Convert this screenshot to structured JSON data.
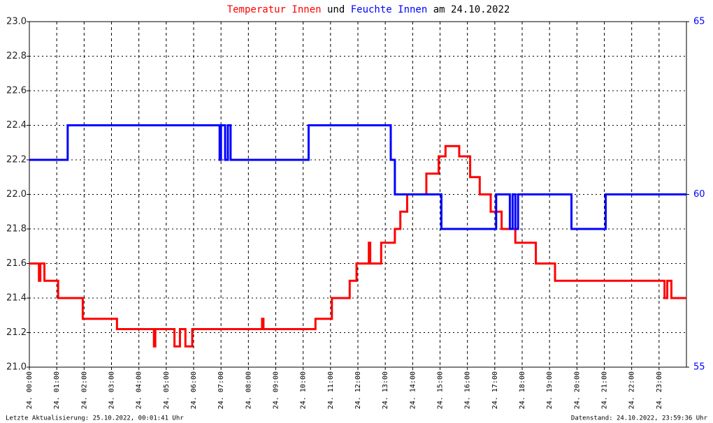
{
  "chart_data": {
    "type": "line",
    "title_connector": "und",
    "title_suffix": "am 24.10.2022",
    "footer_left": "Letzte Aktualisierung: 25.10.2022, 00:01:41 Uhr",
    "footer_right": "Datenstand: 24.10.2022, 23:59:36 Uhr",
    "xlim": [
      0,
      24
    ],
    "xticks": [
      {
        "value": 0,
        "label": "24. 00:00"
      },
      {
        "value": 1,
        "label": "24. 01:00"
      },
      {
        "value": 2,
        "label": "24. 02:00"
      },
      {
        "value": 3,
        "label": "24. 03:00"
      },
      {
        "value": 4,
        "label": "24. 04:00"
      },
      {
        "value": 5,
        "label": "24. 05:00"
      },
      {
        "value": 6,
        "label": "24. 06:00"
      },
      {
        "value": 7,
        "label": "24. 07:00"
      },
      {
        "value": 8,
        "label": "24. 08:00"
      },
      {
        "value": 9,
        "label": "24. 09:00"
      },
      {
        "value": 10,
        "label": "24. 10:00"
      },
      {
        "value": 11,
        "label": "24. 11:00"
      },
      {
        "value": 12,
        "label": "24. 12:00"
      },
      {
        "value": 13,
        "label": "24. 13:00"
      },
      {
        "value": 14,
        "label": "24. 14:00"
      },
      {
        "value": 15,
        "label": "24. 15:00"
      },
      {
        "value": 16,
        "label": "24. 16:00"
      },
      {
        "value": 17,
        "label": "24. 17:00"
      },
      {
        "value": 18,
        "label": "24. 18:00"
      },
      {
        "value": 19,
        "label": "24. 19:00"
      },
      {
        "value": 20,
        "label": "24. 20:00"
      },
      {
        "value": 21,
        "label": "24. 21:00"
      },
      {
        "value": 22,
        "label": "24. 22:00"
      },
      {
        "value": 23,
        "label": "24. 23:00"
      }
    ],
    "ylim": [
      21,
      23
    ],
    "yticks": [
      {
        "value": 21,
        "label": "21.0"
      },
      21.2,
      21.4,
      21.6,
      21.8,
      {
        "value": 22,
        "label": "22.0"
      },
      22.2,
      22.4,
      22.6,
      22.8,
      {
        "value": 23,
        "label": "23.0"
      }
    ],
    "y2lim": [
      55,
      65
    ],
    "y2ticks": [
      55,
      60,
      65
    ],
    "grid": true,
    "series": [
      {
        "name": "Temperatur Innen",
        "color": "#ff0000",
        "x": [
          0,
          0.35,
          0.35,
          0.4,
          0.4,
          0.55,
          0.55,
          1.05,
          1.05,
          1.95,
          1.95,
          3.2,
          3.2,
          4.55,
          4.55,
          4.6,
          4.6,
          5.3,
          5.3,
          5.5,
          5.5,
          5.7,
          5.7,
          5.95,
          5.95,
          8.5,
          8.5,
          8.55,
          8.55,
          10.45,
          10.45,
          11.05,
          11.05,
          11.7,
          11.7,
          11.95,
          11.95,
          12.4,
          12.4,
          12.45,
          12.45,
          12.85,
          12.85,
          13.35,
          13.35,
          13.55,
          13.55,
          13.8,
          13.8,
          14.5,
          14.5,
          14.95,
          14.95,
          15.2,
          15.2,
          15.7,
          15.7,
          16.1,
          16.1,
          16.45,
          16.45,
          16.85,
          16.85,
          17.25,
          17.25,
          17.75,
          17.75,
          18.5,
          18.5,
          19.2,
          19.2,
          23.2,
          23.2,
          23.3,
          23.3,
          23.45,
          23.45,
          24
        ],
        "values": [
          21.6,
          21.6,
          21.5,
          21.5,
          21.6,
          21.6,
          21.5,
          21.5,
          21.4,
          21.4,
          21.28,
          21.28,
          21.22,
          21.22,
          21.12,
          21.12,
          21.22,
          21.22,
          21.12,
          21.12,
          21.22,
          21.22,
          21.12,
          21.12,
          21.22,
          21.22,
          21.28,
          21.28,
          21.22,
          21.22,
          21.28,
          21.28,
          21.4,
          21.4,
          21.5,
          21.5,
          21.6,
          21.6,
          21.72,
          21.72,
          21.6,
          21.6,
          21.72,
          21.72,
          21.8,
          21.8,
          21.9,
          21.9,
          22.0,
          22.0,
          22.12,
          22.12,
          22.22,
          22.22,
          22.28,
          22.28,
          22.22,
          22.22,
          22.1,
          22.1,
          22.0,
          22.0,
          21.9,
          21.9,
          21.8,
          21.8,
          21.72,
          21.72,
          21.6,
          21.6,
          21.5,
          21.5,
          21.4,
          21.4,
          21.5,
          21.5,
          21.4,
          21.4
        ]
      },
      {
        "name": "Feuchte Innen",
        "color": "#0000ff",
        "axis": "y2",
        "x": [
          0,
          1.4,
          1.4,
          6.95,
          6.95,
          7.0,
          7.0,
          7.15,
          7.15,
          7.25,
          7.25,
          7.35,
          7.35,
          10.2,
          10.2,
          13.2,
          13.2,
          13.35,
          13.35,
          15.05,
          15.05,
          17.05,
          17.05,
          17.55,
          17.55,
          17.65,
          17.65,
          17.75,
          17.75,
          17.85,
          17.85,
          19.8,
          19.8,
          21.05,
          21.05,
          24
        ],
        "values": [
          61,
          61,
          62,
          62,
          61,
          61,
          62,
          62,
          61,
          61,
          62,
          62,
          61,
          61,
          62,
          62,
          61,
          61,
          60,
          60,
          59,
          59,
          60,
          60,
          59,
          59,
          60,
          60,
          59,
          59,
          60,
          60,
          59,
          59,
          60,
          60
        ]
      }
    ]
  }
}
